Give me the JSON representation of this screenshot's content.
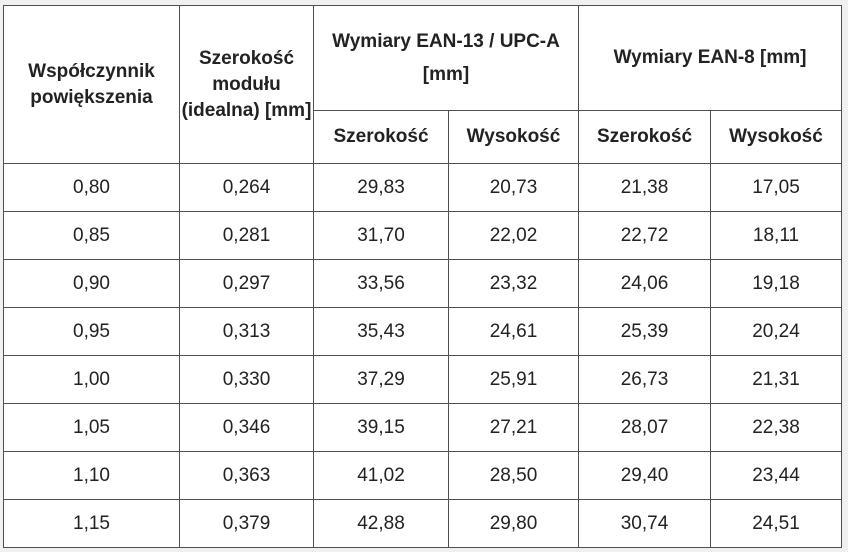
{
  "table": {
    "headers": {
      "factor": "Współczynnik powiększenia",
      "module_width": "Szerokość modułu (idealna) [mm]",
      "ean13": "Wymiary EAN-13 / UPC-A [mm]",
      "ean8": "Wymiary EAN-8 [mm]",
      "ean13_width": "Szerokość",
      "ean13_height": "Wysokość",
      "ean8_width": "Szerokość",
      "ean8_height": "Wysokość"
    },
    "rows": [
      [
        "0,80",
        "0,264",
        "29,83",
        "20,73",
        "21,38",
        "17,05"
      ],
      [
        "0,85",
        "0,281",
        "31,70",
        "22,02",
        "22,72",
        "18,11"
      ],
      [
        "0,90",
        "0,297",
        "33,56",
        "23,32",
        "24,06",
        "19,18"
      ],
      [
        "0,95",
        "0,313",
        "35,43",
        "24,61",
        "25,39",
        "20,24"
      ],
      [
        "1,00",
        "0,330",
        "37,29",
        "25,91",
        "26,73",
        "21,31"
      ],
      [
        "1,05",
        "0,346",
        "39,15",
        "27,21",
        "28,07",
        "22,38"
      ],
      [
        "1,10",
        "0,363",
        "41,02",
        "28,50",
        "29,40",
        "23,44"
      ],
      [
        "1,15",
        "0,379",
        "42,88",
        "29,80",
        "30,74",
        "24,51"
      ]
    ]
  }
}
